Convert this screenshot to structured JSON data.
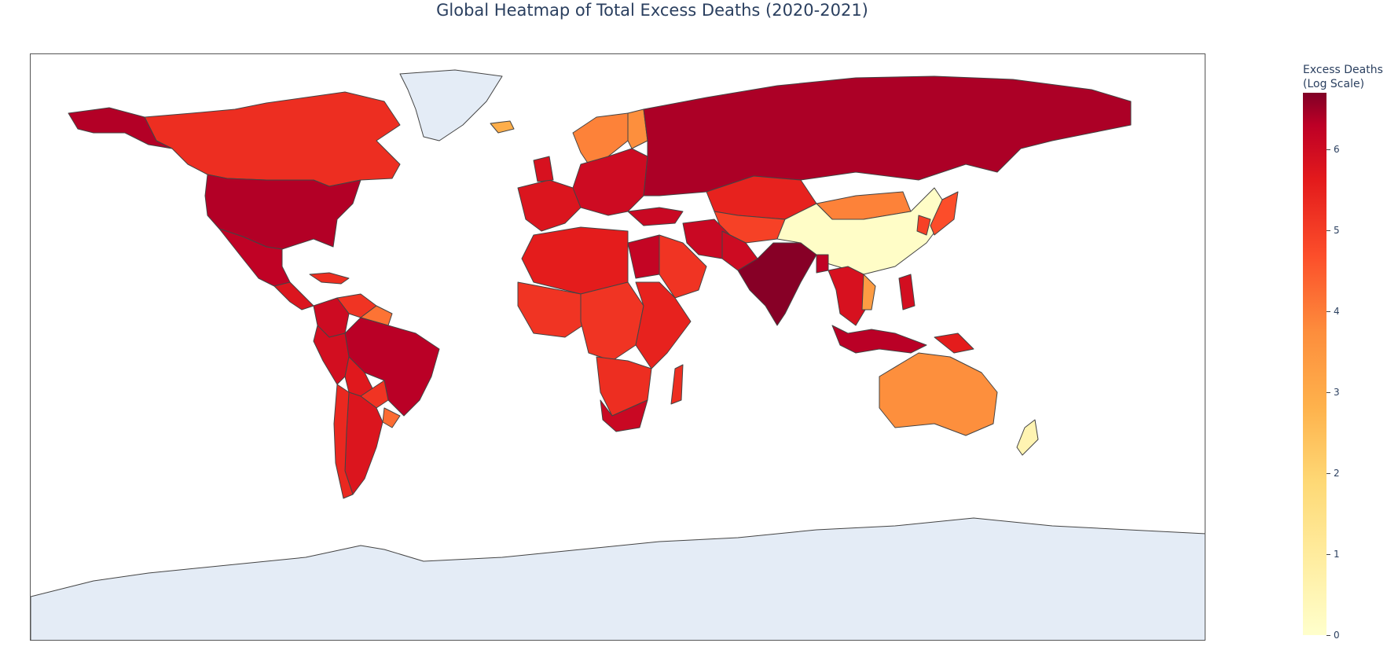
{
  "title": "Global Heatmap of Total Excess Deaths (2020-2021)",
  "colorbar": {
    "title_line1": "Excess Deaths",
    "title_line2": "(Log Scale)",
    "ticks": [
      "0",
      "1",
      "2",
      "3",
      "4",
      "5",
      "6"
    ],
    "range": [
      0,
      6.7
    ]
  },
  "colors": {
    "no_data": "#e4ecf6",
    "border": "#444444",
    "scale": [
      "#ffffcc",
      "#ffeda0",
      "#fed976",
      "#feb24c",
      "#fd8d3c",
      "#fc4e2a",
      "#e31a1c",
      "#bd0026",
      "#800026"
    ]
  },
  "chart_data": {
    "type": "heatmap",
    "projection": "equirectangular",
    "regions": [
      {
        "name": "Canada",
        "value": 4.7
      },
      {
        "name": "United States",
        "value": 6.0
      },
      {
        "name": "Alaska",
        "value": 6.0
      },
      {
        "name": "Mexico",
        "value": 5.8
      },
      {
        "name": "Central America",
        "value": 5.2
      },
      {
        "name": "Caribbean",
        "value": 4.7
      },
      {
        "name": "Greenland",
        "value": null
      },
      {
        "name": "Iceland",
        "value": 2.6
      },
      {
        "name": "Colombia",
        "value": 5.5
      },
      {
        "name": "Venezuela",
        "value": 4.6
      },
      {
        "name": "Guianas",
        "value": 3.7
      },
      {
        "name": "Brazil",
        "value": 5.9
      },
      {
        "name": "Peru",
        "value": 5.4
      },
      {
        "name": "Bolivia",
        "value": 5.1
      },
      {
        "name": "Paraguay",
        "value": 4.6
      },
      {
        "name": "Uruguay",
        "value": 3.8
      },
      {
        "name": "Argentina",
        "value": 5.2
      },
      {
        "name": "Chile",
        "value": 4.8
      },
      {
        "name": "Western Europe",
        "value": 5.2
      },
      {
        "name": "United Kingdom",
        "value": 5.3
      },
      {
        "name": "Scandinavia",
        "value": 3.5
      },
      {
        "name": "Finland",
        "value": 3.3
      },
      {
        "name": "Eastern Europe",
        "value": 5.5
      },
      {
        "name": "Russia",
        "value": 6.1
      },
      {
        "name": "Turkey",
        "value": 5.6
      },
      {
        "name": "Kazakhstan",
        "value": 4.9
      },
      {
        "name": "Central Asia",
        "value": 4.4
      },
      {
        "name": "Mongolia",
        "value": 3.5
      },
      {
        "name": "China",
        "value": 0.1
      },
      {
        "name": "Japan",
        "value": 4.2
      },
      {
        "name": "Korea",
        "value": 4.4
      },
      {
        "name": "Iran",
        "value": 5.6
      },
      {
        "name": "Pakistan",
        "value": 5.5
      },
      {
        "name": "India",
        "value": 6.6
      },
      {
        "name": "Bangladesh",
        "value": 5.8
      },
      {
        "name": "Southeast Asia",
        "value": 5.3
      },
      {
        "name": "Vietnam",
        "value": 3.0
      },
      {
        "name": "Arabia",
        "value": 4.6
      },
      {
        "name": "Egypt",
        "value": 5.7
      },
      {
        "name": "North Africa",
        "value": 5.0
      },
      {
        "name": "West Africa",
        "value": 4.6
      },
      {
        "name": "Central Africa",
        "value": 4.6
      },
      {
        "name": "East Africa",
        "value": 4.9
      },
      {
        "name": "Southern Africa",
        "value": 4.7
      },
      {
        "name": "South Africa",
        "value": 5.6
      },
      {
        "name": "Madagascar",
        "value": 4.7
      },
      {
        "name": "Indonesia",
        "value": 5.9
      },
      {
        "name": "Philippines",
        "value": 5.4
      },
      {
        "name": "Papua New Guinea",
        "value": 5.0
      },
      {
        "name": "Australia",
        "value": 3.3
      },
      {
        "name": "New Zealand",
        "value": 0.5
      },
      {
        "name": "Antarctica",
        "value": null
      }
    ]
  }
}
